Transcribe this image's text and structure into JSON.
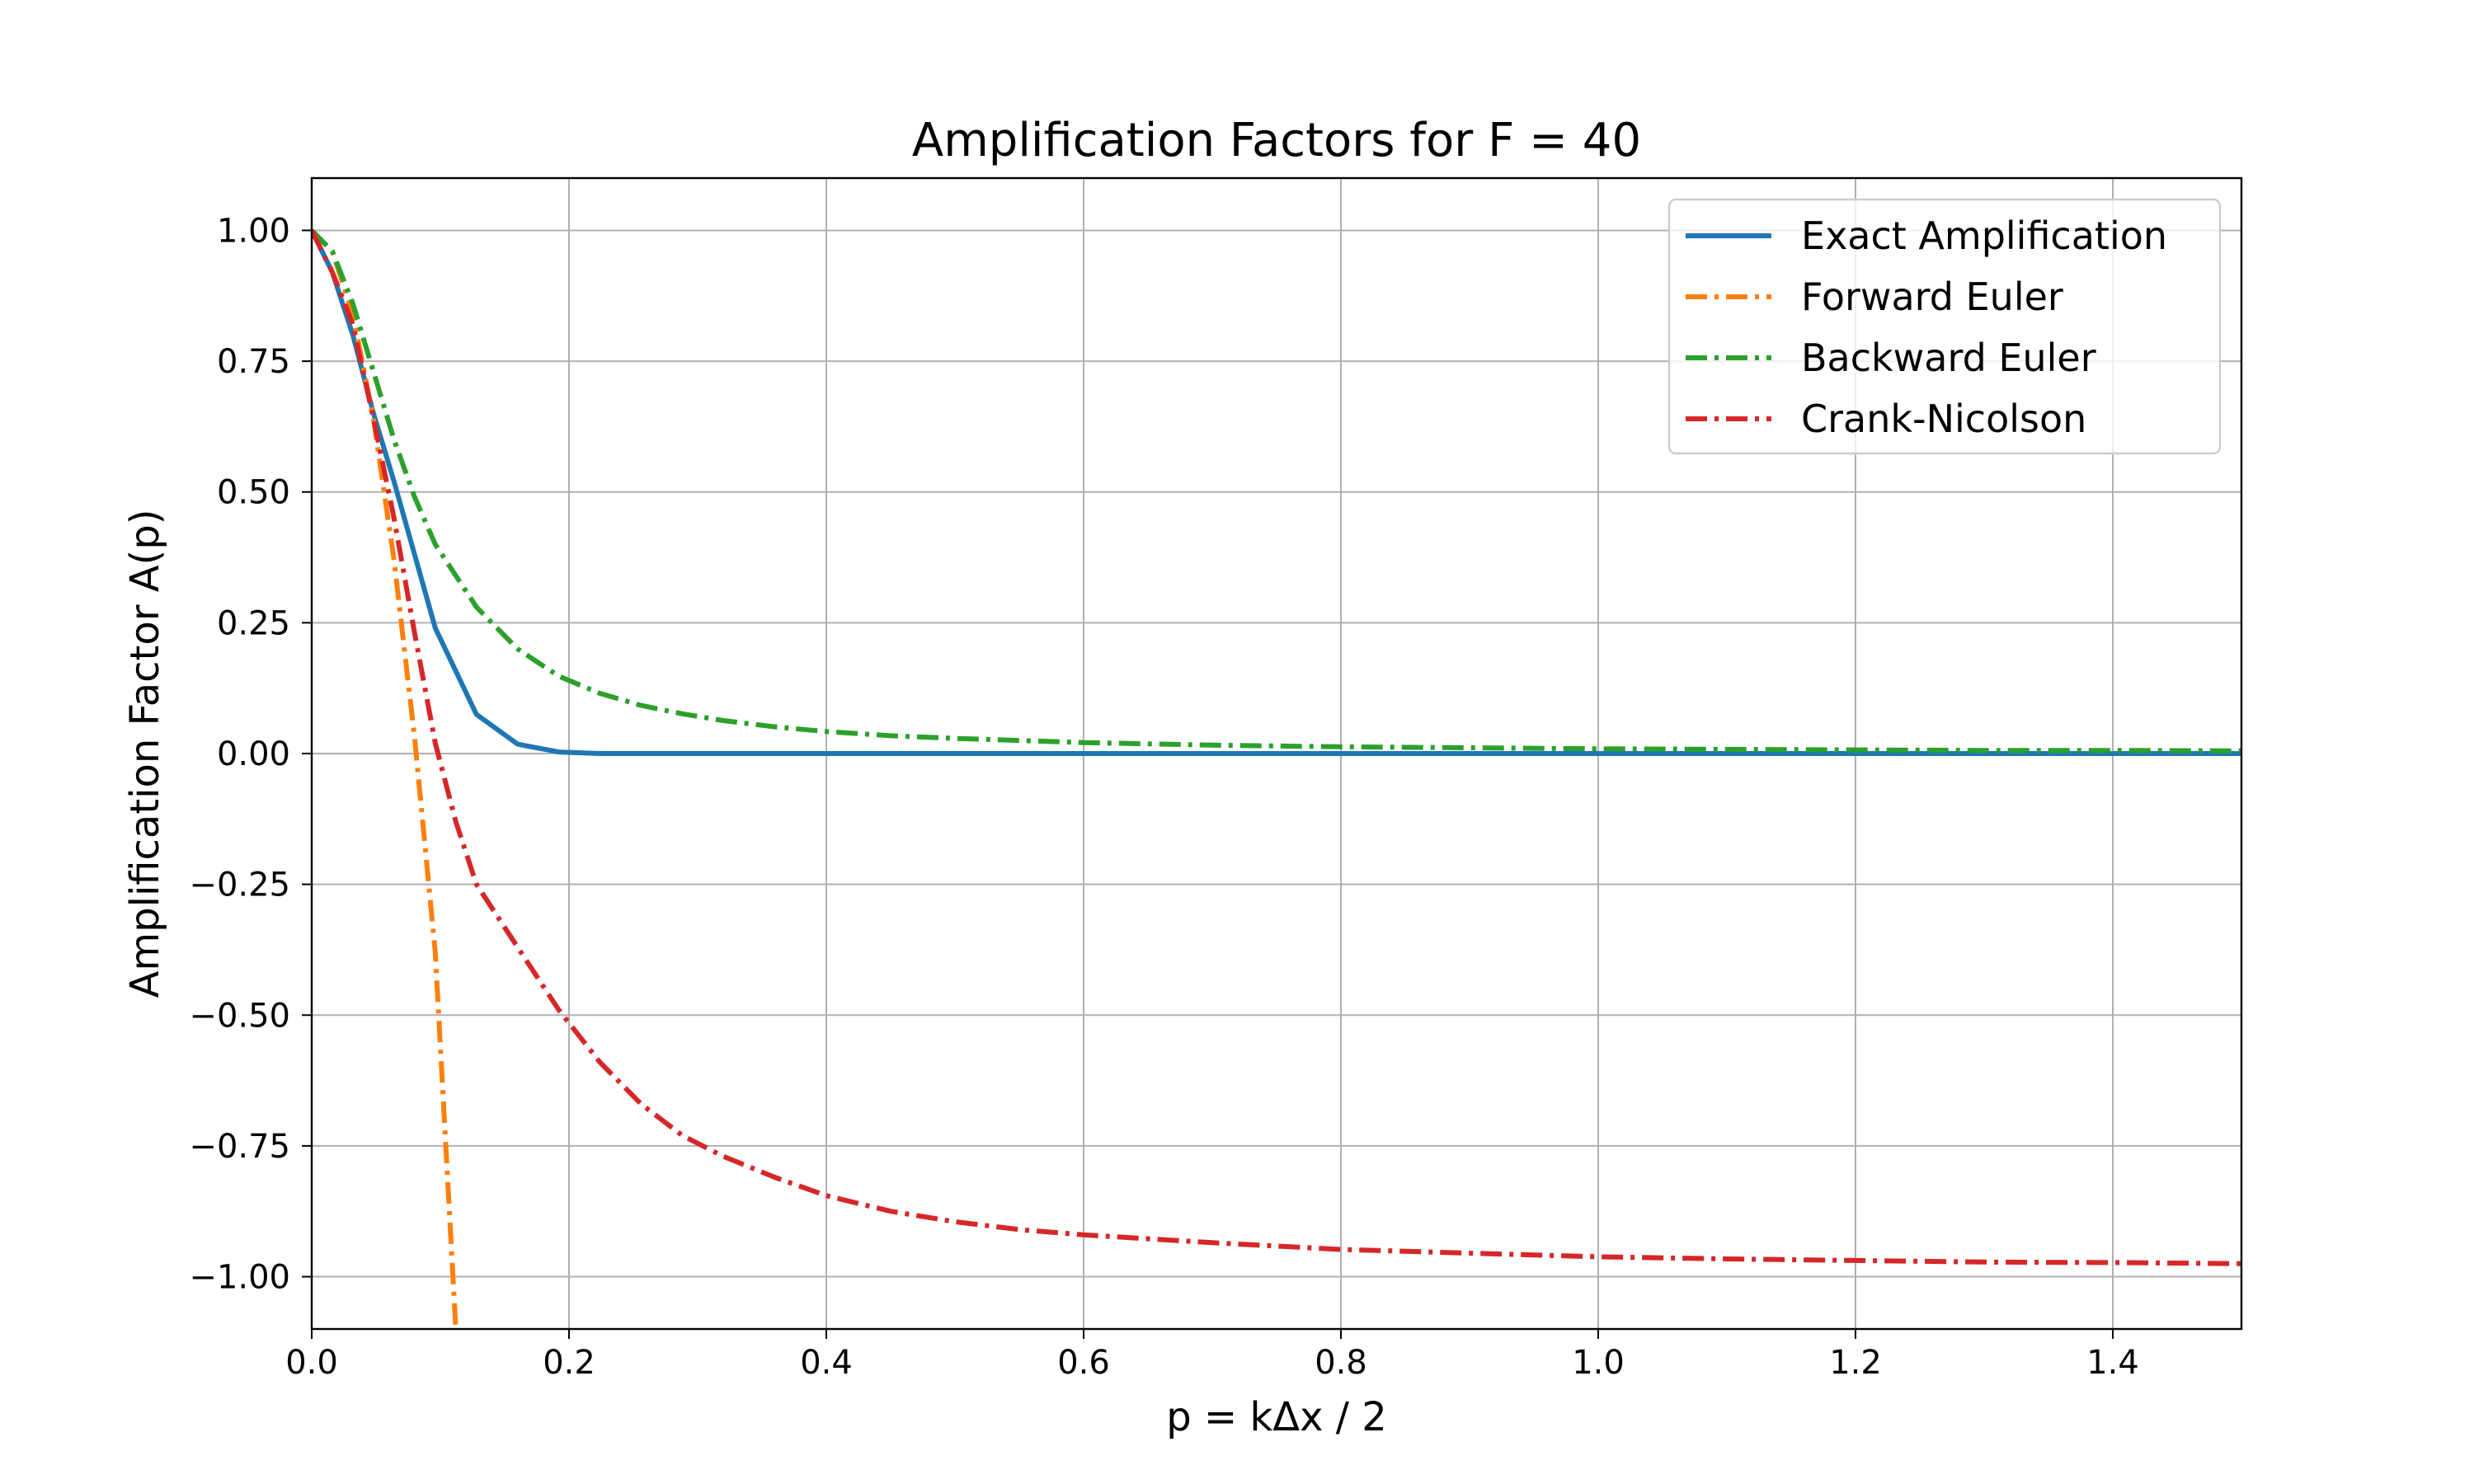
{
  "chart_data": {
    "type": "line",
    "title": "Amplification Factors for F = 40",
    "xlabel": "p = kΔx / 2",
    "ylabel": "Amplification Factor A(p)",
    "xlim": [
      0.0,
      1.5
    ],
    "ylim": [
      -1.1,
      1.1
    ],
    "grid": true,
    "legend_position": "top-right",
    "xticks": [
      {
        "value": 0.0,
        "label": "0.0"
      },
      {
        "value": 0.2,
        "label": "0.2"
      },
      {
        "value": 0.4,
        "label": "0.4"
      },
      {
        "value": 0.6,
        "label": "0.6"
      },
      {
        "value": 0.8,
        "label": "0.8"
      },
      {
        "value": 1.0,
        "label": "1.0"
      },
      {
        "value": 1.2,
        "label": "1.2"
      },
      {
        "value": 1.4,
        "label": "1.4"
      }
    ],
    "yticks": [
      {
        "value": 1.0,
        "label": "1.00"
      },
      {
        "value": 0.75,
        "label": "0.75"
      },
      {
        "value": 0.5,
        "label": "0.50"
      },
      {
        "value": 0.25,
        "label": "0.25"
      },
      {
        "value": 0.0,
        "label": "0.00"
      },
      {
        "value": -0.25,
        "label": "−0.25"
      },
      {
        "value": -0.5,
        "label": "−0.50"
      },
      {
        "value": -0.75,
        "label": "−0.75"
      },
      {
        "value": -1.0,
        "label": "−1.00"
      }
    ],
    "series": [
      {
        "name": "Exact Amplification",
        "color": "#1f77b4",
        "linestyle": "solid",
        "x": [
          0.0,
          0.016,
          0.032,
          0.048,
          0.064,
          0.08,
          0.096,
          0.128,
          0.16,
          0.192,
          0.224,
          0.256,
          0.3,
          0.4,
          0.6,
          0.8,
          1.0,
          1.2,
          1.4,
          1.5
        ],
        "y": [
          1.0,
          0.92,
          0.8,
          0.65,
          0.52,
          0.38,
          0.24,
          0.075,
          0.018,
          0.003,
          0.0,
          0.0,
          0.0,
          0.0,
          0.0,
          0.0,
          0.0,
          0.0,
          0.0,
          0.0
        ]
      },
      {
        "name": "Forward Euler",
        "color": "#ff7f0e",
        "linestyle": "dashdot",
        "x": [
          0.0,
          0.016,
          0.032,
          0.048,
          0.064,
          0.08,
          0.096,
          0.112
        ],
        "y": [
          1.0,
          0.96,
          0.84,
          0.64,
          0.37,
          0.03,
          -0.38,
          -1.1
        ]
      },
      {
        "name": "Backward Euler",
        "color": "#2ca02c",
        "linestyle": "dashdot",
        "x": [
          0.0,
          0.016,
          0.032,
          0.048,
          0.064,
          0.08,
          0.096,
          0.128,
          0.16,
          0.192,
          0.224,
          0.256,
          0.288,
          0.32,
          0.36,
          0.4,
          0.45,
          0.5,
          0.6,
          0.7,
          0.8,
          0.9,
          1.0,
          1.1,
          1.2,
          1.3,
          1.4,
          1.5
        ],
        "y": [
          1.0,
          0.96,
          0.86,
          0.73,
          0.6,
          0.49,
          0.4,
          0.28,
          0.2,
          0.148,
          0.115,
          0.092,
          0.076,
          0.063,
          0.051,
          0.042,
          0.034,
          0.029,
          0.021,
          0.016,
          0.013,
          0.011,
          0.009,
          0.008,
          0.007,
          0.006,
          0.006,
          0.005
        ]
      },
      {
        "name": "Crank-Nicolson",
        "color": "#d62728",
        "linestyle": "dashdot",
        "x": [
          0.0,
          0.016,
          0.032,
          0.048,
          0.064,
          0.08,
          0.096,
          0.112,
          0.128,
          0.16,
          0.192,
          0.224,
          0.256,
          0.288,
          0.32,
          0.36,
          0.4,
          0.45,
          0.5,
          0.55,
          0.6,
          0.7,
          0.8,
          0.9,
          1.0,
          1.1,
          1.2,
          1.3,
          1.4,
          1.5
        ],
        "y": [
          1.0,
          0.92,
          0.82,
          0.64,
          0.45,
          0.23,
          0.02,
          -0.13,
          -0.25,
          -0.37,
          -0.49,
          -0.59,
          -0.67,
          -0.73,
          -0.77,
          -0.81,
          -0.845,
          -0.875,
          -0.895,
          -0.91,
          -0.92,
          -0.935,
          -0.948,
          -0.955,
          -0.962,
          -0.966,
          -0.969,
          -0.972,
          -0.973,
          -0.975
        ]
      }
    ]
  }
}
